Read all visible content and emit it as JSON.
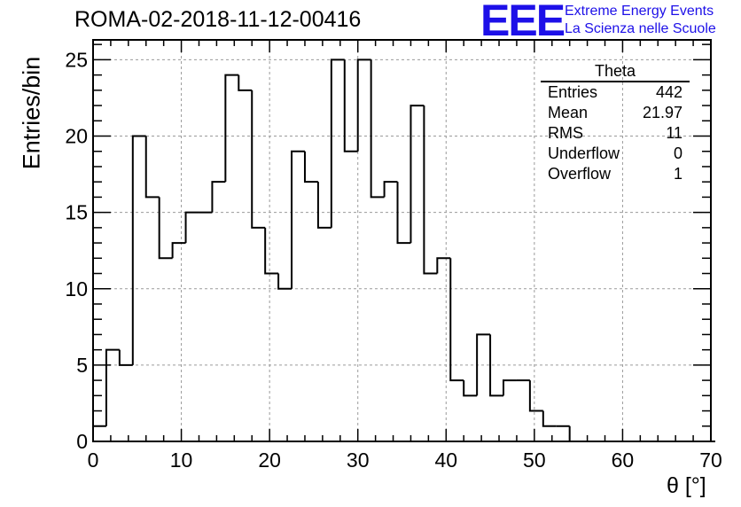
{
  "title": "ROMA-02-2018-11-12-00416",
  "logo": {
    "mark": "EEE",
    "line1": "Extreme Energy Events",
    "line2": "La Scienza nelle Scuole",
    "color": "#1d10e8"
  },
  "stats": {
    "title": "Theta",
    "rows": [
      {
        "label": "Entries",
        "value": "442"
      },
      {
        "label": "Mean",
        "value": "21.97"
      },
      {
        "label": "RMS",
        "value": "11"
      },
      {
        "label": "Underflow",
        "value": "0"
      },
      {
        "label": "Overflow",
        "value": "1"
      }
    ]
  },
  "chart_data": {
    "type": "bar",
    "style": "step-histogram",
    "xlabel": "θ [°]",
    "ylabel": "Entries/bin",
    "xlim": [
      0,
      70
    ],
    "ylim": [
      0,
      26.3
    ],
    "xticks": [
      0,
      10,
      20,
      30,
      40,
      50,
      60,
      70
    ],
    "yticks": [
      0,
      5,
      10,
      15,
      20,
      25
    ],
    "grid": true,
    "bin_width": 1.5,
    "x_start": 0,
    "values": [
      1,
      6,
      5,
      20,
      16,
      12,
      13,
      15,
      15,
      17,
      24,
      23,
      14,
      11,
      10,
      19,
      17,
      14,
      25,
      19,
      25,
      16,
      17,
      13,
      22,
      11,
      12,
      4,
      3,
      7,
      3,
      4,
      4,
      2,
      1,
      1,
      0,
      0,
      0,
      0,
      0,
      0,
      0,
      0,
      0,
      0,
      0
    ]
  }
}
